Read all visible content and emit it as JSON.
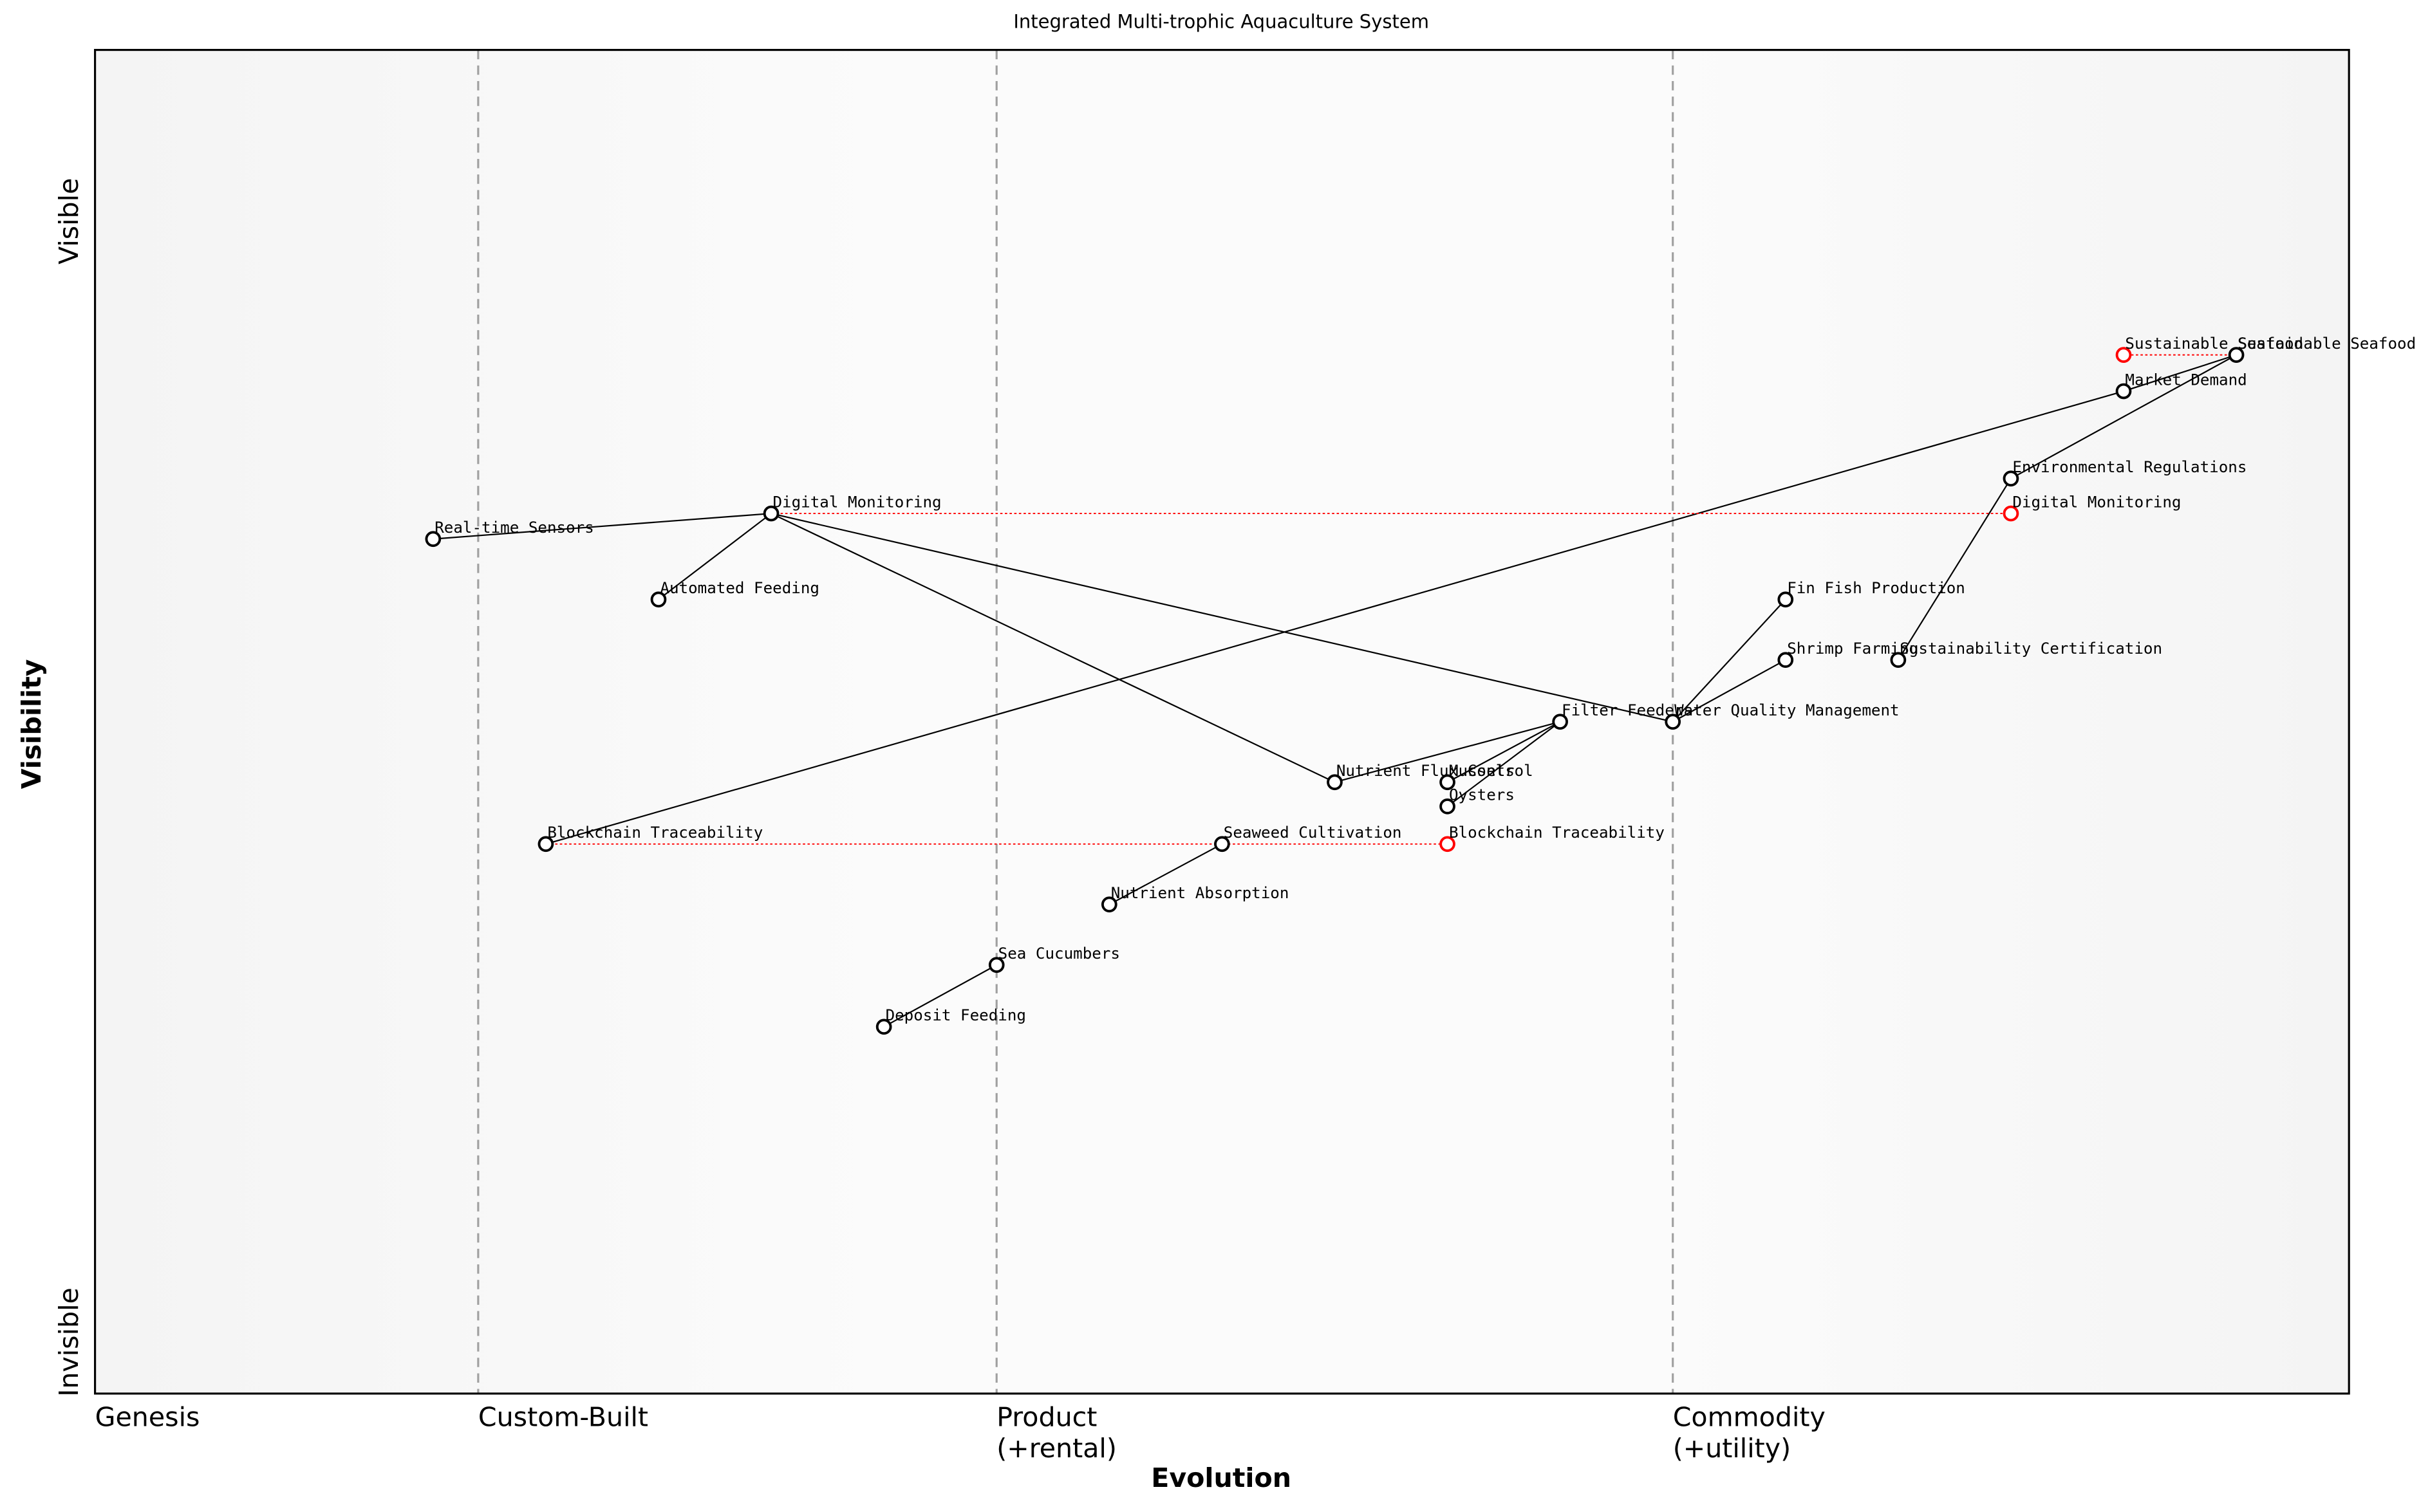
{
  "chart_data": {
    "type": "wardley",
    "title": "Integrated Multi-trophic Aquaculture System",
    "xlabel": "Evolution",
    "ylabel": "Visibility",
    "ylabel_top": "Visible",
    "ylabel_bottom": "Invisible",
    "xlim": [
      0,
      1
    ],
    "ylim": [
      0,
      1
    ],
    "stages": [
      {
        "value": 0,
        "label": [
          "Genesis"
        ]
      },
      {
        "value": 0.17,
        "label": [
          "Custom-Built"
        ]
      },
      {
        "value": 0.4,
        "label": [
          "Product",
          "(+rental)"
        ]
      },
      {
        "value": 0.7,
        "label": [
          "Commodity",
          "(+utility)"
        ]
      }
    ],
    "nodes": [
      {
        "name": "Sustainable Seafood",
        "x": 0.95,
        "y": 0.773
      },
      {
        "name": "Market Demand",
        "x": 0.9,
        "y": 0.746
      },
      {
        "name": "Environmental Regulations",
        "x": 0.85,
        "y": 0.681
      },
      {
        "name": "Digital Monitoring",
        "x": 0.3,
        "y": 0.655
      },
      {
        "name": "Real-time Sensors",
        "x": 0.15,
        "y": 0.636
      },
      {
        "name": "Automated Feeding",
        "x": 0.25,
        "y": 0.591
      },
      {
        "name": "Fin Fish Production",
        "x": 0.75,
        "y": 0.591
      },
      {
        "name": "Shrimp Farming",
        "x": 0.75,
        "y": 0.546
      },
      {
        "name": "Sustainability Certification",
        "x": 0.8,
        "y": 0.546
      },
      {
        "name": "Water Quality Management",
        "x": 0.7,
        "y": 0.5
      },
      {
        "name": "Filter Feeders",
        "x": 0.65,
        "y": 0.5
      },
      {
        "name": "Nutrient Flux Control",
        "x": 0.55,
        "y": 0.455
      },
      {
        "name": "Mussels",
        "x": 0.6,
        "y": 0.455
      },
      {
        "name": "Oysters",
        "x": 0.6,
        "y": 0.437
      },
      {
        "name": "Blockchain Traceability",
        "x": 0.2,
        "y": 0.409
      },
      {
        "name": "Seaweed Cultivation",
        "x": 0.5,
        "y": 0.409
      },
      {
        "name": "Nutrient Absorption",
        "x": 0.45,
        "y": 0.364
      },
      {
        "name": "Sea Cucumbers",
        "x": 0.4,
        "y": 0.319
      },
      {
        "name": "Deposit Feeding",
        "x": 0.35,
        "y": 0.273
      }
    ],
    "links": [
      [
        0,
        1
      ],
      [
        0,
        2
      ],
      [
        1,
        14
      ],
      [
        2,
        8
      ],
      [
        3,
        4
      ],
      [
        3,
        5
      ],
      [
        3,
        11
      ],
      [
        3,
        9
      ],
      [
        9,
        6
      ],
      [
        9,
        7
      ],
      [
        10,
        11
      ],
      [
        10,
        12
      ],
      [
        10,
        13
      ],
      [
        15,
        16
      ],
      [
        17,
        18
      ]
    ],
    "evolutions": [
      {
        "from": 0,
        "name": "Sustainable Seafood",
        "x": 0.9,
        "y": 0.773
      },
      {
        "from": 3,
        "name": "Digital Monitoring",
        "x": 0.85,
        "y": 0.655
      },
      {
        "from": 14,
        "name": "Blockchain Traceability",
        "x": 0.6,
        "y": 0.409
      }
    ],
    "evolution_color": "#ff0000",
    "node_color": "#000000"
  }
}
